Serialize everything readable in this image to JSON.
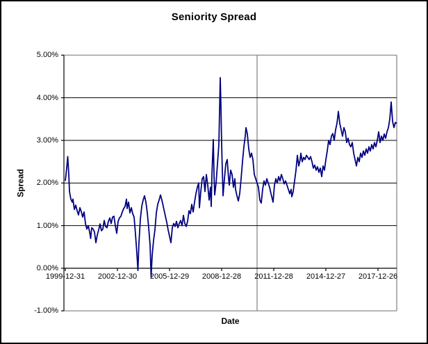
{
  "title": "Seniority Spread",
  "y_axis": {
    "title": "Spread",
    "tick_labels": [
      "5.00%",
      "4.00%",
      "3.00%",
      "2.00%",
      "1.00%",
      "0.00%",
      "-1.00%"
    ],
    "tick_values": [
      5,
      4,
      3,
      2,
      1,
      0,
      -1
    ]
  },
  "x_axis": {
    "title": "Date",
    "tick_labels": [
      "1999-12-31",
      "2002-12-30",
      "2005-12-29",
      "2008-12-28",
      "2011-12-28",
      "2014-12-27",
      "2017-12-26"
    ]
  },
  "colors": {
    "series": "#000080",
    "gridline": "#000000",
    "plot_border": "#808080",
    "vline": "#808080",
    "text": "#000000",
    "background": "#ffffff"
  },
  "chart_data": {
    "type": "line",
    "title": "Seniority Spread",
    "xlabel": "Date",
    "ylabel": "Spread",
    "ylim": [
      -1.0,
      5.0
    ],
    "y_tick_step": 1.0,
    "y_format": "percent",
    "x_tick_labels": [
      "1999-12-31",
      "2002-12-30",
      "2005-12-29",
      "2008-12-28",
      "2011-12-28",
      "2014-12-27",
      "2017-12-26"
    ],
    "x_tick_interval_years": 3,
    "x_range_years": [
      2000.0,
      2019.08
    ],
    "grid": "horizontal-major",
    "legend": "none",
    "annotations": [
      {
        "type": "vline",
        "t": 2011.04,
        "color": "#808080"
      }
    ],
    "series": [
      {
        "name": "Seniority Spread",
        "color": "#000080",
        "units": "percent",
        "points": [
          [
            2000.0,
            2.05
          ],
          [
            2000.08,
            2.35
          ],
          [
            2000.14,
            2.62
          ],
          [
            2000.2,
            2.2
          ],
          [
            2000.24,
            1.8
          ],
          [
            2000.32,
            1.62
          ],
          [
            2000.4,
            1.55
          ],
          [
            2000.44,
            1.62
          ],
          [
            2000.52,
            1.38
          ],
          [
            2000.6,
            1.48
          ],
          [
            2000.68,
            1.35
          ],
          [
            2000.76,
            1.25
          ],
          [
            2000.84,
            1.42
          ],
          [
            2000.92,
            1.33
          ],
          [
            2001.0,
            1.2
          ],
          [
            2001.08,
            1.32
          ],
          [
            2001.16,
            1.05
          ],
          [
            2001.24,
            0.92
          ],
          [
            2001.32,
            1.0
          ],
          [
            2001.4,
            0.85
          ],
          [
            2001.46,
            0.7
          ],
          [
            2001.52,
            0.95
          ],
          [
            2001.6,
            0.92
          ],
          [
            2001.68,
            0.85
          ],
          [
            2001.76,
            0.6
          ],
          [
            2001.84,
            0.78
          ],
          [
            2001.92,
            0.9
          ],
          [
            2002.0,
            1.04
          ],
          [
            2002.08,
            0.88
          ],
          [
            2002.16,
            0.92
          ],
          [
            2002.24,
            1.12
          ],
          [
            2002.32,
            0.98
          ],
          [
            2002.4,
            0.95
          ],
          [
            2002.48,
            1.1
          ],
          [
            2002.56,
            1.18
          ],
          [
            2002.64,
            1.05
          ],
          [
            2002.72,
            1.2
          ],
          [
            2002.8,
            1.22
          ],
          [
            2002.88,
            1.0
          ],
          [
            2002.96,
            0.82
          ],
          [
            2003.04,
            1.1
          ],
          [
            2003.12,
            1.18
          ],
          [
            2003.2,
            1.22
          ],
          [
            2003.28,
            1.32
          ],
          [
            2003.36,
            1.4
          ],
          [
            2003.44,
            1.45
          ],
          [
            2003.52,
            1.62
          ],
          [
            2003.56,
            1.4
          ],
          [
            2003.64,
            1.55
          ],
          [
            2003.72,
            1.3
          ],
          [
            2003.8,
            1.42
          ],
          [
            2003.88,
            1.28
          ],
          [
            2003.96,
            1.2
          ],
          [
            2004.04,
            0.8
          ],
          [
            2004.12,
            0.35
          ],
          [
            2004.18,
            -0.05
          ],
          [
            2004.24,
            0.6
          ],
          [
            2004.32,
            1.15
          ],
          [
            2004.4,
            1.45
          ],
          [
            2004.48,
            1.6
          ],
          [
            2004.56,
            1.7
          ],
          [
            2004.64,
            1.55
          ],
          [
            2004.72,
            1.3
          ],
          [
            2004.8,
            0.95
          ],
          [
            2004.88,
            0.55
          ],
          [
            2004.94,
            -0.2
          ],
          [
            2005.0,
            0.3
          ],
          [
            2005.08,
            0.65
          ],
          [
            2005.16,
            0.9
          ],
          [
            2005.24,
            1.3
          ],
          [
            2005.32,
            1.5
          ],
          [
            2005.4,
            1.6
          ],
          [
            2005.48,
            1.72
          ],
          [
            2005.56,
            1.6
          ],
          [
            2005.64,
            1.45
          ],
          [
            2005.72,
            1.3
          ],
          [
            2005.8,
            1.15
          ],
          [
            2005.84,
            1.08
          ],
          [
            2005.92,
            0.9
          ],
          [
            2006.0,
            0.75
          ],
          [
            2006.08,
            0.6
          ],
          [
            2006.16,
            0.95
          ],
          [
            2006.24,
            1.05
          ],
          [
            2006.32,
            0.98
          ],
          [
            2006.4,
            1.1
          ],
          [
            2006.48,
            0.95
          ],
          [
            2006.56,
            1.05
          ],
          [
            2006.64,
            1.12
          ],
          [
            2006.72,
            1.0
          ],
          [
            2006.8,
            1.24
          ],
          [
            2006.88,
            1.05
          ],
          [
            2006.96,
            0.98
          ],
          [
            2007.04,
            1.1
          ],
          [
            2007.12,
            1.35
          ],
          [
            2007.2,
            1.28
          ],
          [
            2007.28,
            1.5
          ],
          [
            2007.36,
            1.32
          ],
          [
            2007.44,
            1.55
          ],
          [
            2007.52,
            1.75
          ],
          [
            2007.6,
            1.9
          ],
          [
            2007.68,
            2.0
          ],
          [
            2007.72,
            1.42
          ],
          [
            2007.8,
            1.8
          ],
          [
            2007.88,
            2.1
          ],
          [
            2007.96,
            2.15
          ],
          [
            2008.04,
            1.8
          ],
          [
            2008.12,
            2.2
          ],
          [
            2008.2,
            1.95
          ],
          [
            2008.28,
            1.6
          ],
          [
            2008.36,
            1.9
          ],
          [
            2008.4,
            1.45
          ],
          [
            2008.44,
            2.2
          ],
          [
            2008.52,
            3.02
          ],
          [
            2008.56,
            2.2
          ],
          [
            2008.6,
            1.72
          ],
          [
            2008.68,
            2.0
          ],
          [
            2008.76,
            2.45
          ],
          [
            2008.84,
            2.9
          ],
          [
            2008.92,
            4.47
          ],
          [
            2008.96,
            3.8
          ],
          [
            2009.0,
            2.9
          ],
          [
            2009.08,
            1.7
          ],
          [
            2009.16,
            2.1
          ],
          [
            2009.24,
            2.45
          ],
          [
            2009.32,
            2.55
          ],
          [
            2009.4,
            2.1
          ],
          [
            2009.44,
            1.95
          ],
          [
            2009.52,
            2.3
          ],
          [
            2009.6,
            2.2
          ],
          [
            2009.68,
            1.9
          ],
          [
            2009.76,
            2.1
          ],
          [
            2009.8,
            1.85
          ],
          [
            2009.88,
            1.7
          ],
          [
            2009.96,
            1.58
          ],
          [
            2010.04,
            1.75
          ],
          [
            2010.12,
            2.1
          ],
          [
            2010.2,
            2.5
          ],
          [
            2010.28,
            2.85
          ],
          [
            2010.36,
            3.1
          ],
          [
            2010.4,
            3.3
          ],
          [
            2010.48,
            3.15
          ],
          [
            2010.56,
            2.8
          ],
          [
            2010.64,
            2.6
          ],
          [
            2010.72,
            2.7
          ],
          [
            2010.8,
            2.55
          ],
          [
            2010.88,
            2.2
          ],
          [
            2010.96,
            2.1
          ],
          [
            2011.04,
            2.0
          ],
          [
            2011.12,
            1.9
          ],
          [
            2011.2,
            1.6
          ],
          [
            2011.28,
            1.53
          ],
          [
            2011.36,
            1.85
          ],
          [
            2011.44,
            2.05
          ],
          [
            2011.52,
            1.95
          ],
          [
            2011.6,
            2.1
          ],
          [
            2011.68,
            2.0
          ],
          [
            2011.76,
            1.9
          ],
          [
            2011.84,
            1.75
          ],
          [
            2011.92,
            1.62
          ],
          [
            2011.96,
            1.55
          ],
          [
            2012.04,
            1.95
          ],
          [
            2012.12,
            2.1
          ],
          [
            2012.2,
            2.0
          ],
          [
            2012.28,
            2.15
          ],
          [
            2012.36,
            2.05
          ],
          [
            2012.44,
            2.2
          ],
          [
            2012.52,
            2.1
          ],
          [
            2012.6,
            1.98
          ],
          [
            2012.68,
            2.05
          ],
          [
            2012.76,
            1.95
          ],
          [
            2012.84,
            1.85
          ],
          [
            2012.92,
            1.75
          ],
          [
            2013.0,
            1.85
          ],
          [
            2013.04,
            1.68
          ],
          [
            2013.12,
            1.8
          ],
          [
            2013.2,
            2.05
          ],
          [
            2013.28,
            2.3
          ],
          [
            2013.36,
            2.65
          ],
          [
            2013.44,
            2.4
          ],
          [
            2013.52,
            2.55
          ],
          [
            2013.56,
            2.7
          ],
          [
            2013.64,
            2.5
          ],
          [
            2013.72,
            2.6
          ],
          [
            2013.8,
            2.55
          ],
          [
            2013.88,
            2.65
          ],
          [
            2013.96,
            2.6
          ],
          [
            2014.04,
            2.55
          ],
          [
            2014.12,
            2.62
          ],
          [
            2014.2,
            2.5
          ],
          [
            2014.28,
            2.35
          ],
          [
            2014.36,
            2.42
          ],
          [
            2014.44,
            2.3
          ],
          [
            2014.52,
            2.38
          ],
          [
            2014.6,
            2.25
          ],
          [
            2014.68,
            2.35
          ],
          [
            2014.76,
            2.15
          ],
          [
            2014.84,
            2.4
          ],
          [
            2014.92,
            2.3
          ],
          [
            2015.0,
            2.55
          ],
          [
            2015.08,
            2.75
          ],
          [
            2015.16,
            3.0
          ],
          [
            2015.24,
            2.9
          ],
          [
            2015.32,
            3.1
          ],
          [
            2015.4,
            3.16
          ],
          [
            2015.48,
            3.0
          ],
          [
            2015.56,
            3.25
          ],
          [
            2015.64,
            3.4
          ],
          [
            2015.72,
            3.68
          ],
          [
            2015.8,
            3.4
          ],
          [
            2015.88,
            3.25
          ],
          [
            2015.96,
            3.1
          ],
          [
            2016.04,
            3.3
          ],
          [
            2016.12,
            3.2
          ],
          [
            2016.2,
            2.95
          ],
          [
            2016.28,
            3.05
          ],
          [
            2016.36,
            2.9
          ],
          [
            2016.44,
            2.85
          ],
          [
            2016.52,
            2.95
          ],
          [
            2016.6,
            2.7
          ],
          [
            2016.68,
            2.55
          ],
          [
            2016.76,
            2.4
          ],
          [
            2016.84,
            2.6
          ],
          [
            2016.92,
            2.5
          ],
          [
            2017.0,
            2.7
          ],
          [
            2017.08,
            2.6
          ],
          [
            2017.16,
            2.75
          ],
          [
            2017.24,
            2.65
          ],
          [
            2017.32,
            2.8
          ],
          [
            2017.4,
            2.7
          ],
          [
            2017.48,
            2.85
          ],
          [
            2017.56,
            2.75
          ],
          [
            2017.64,
            2.9
          ],
          [
            2017.72,
            2.8
          ],
          [
            2017.8,
            2.95
          ],
          [
            2017.88,
            2.85
          ],
          [
            2017.96,
            3.0
          ],
          [
            2018.04,
            3.2
          ],
          [
            2018.12,
            2.95
          ],
          [
            2018.2,
            3.1
          ],
          [
            2018.28,
            3.0
          ],
          [
            2018.36,
            3.15
          ],
          [
            2018.44,
            3.05
          ],
          [
            2018.52,
            3.2
          ],
          [
            2018.6,
            3.3
          ],
          [
            2018.68,
            3.5
          ],
          [
            2018.76,
            3.9
          ],
          [
            2018.84,
            3.45
          ],
          [
            2018.92,
            3.3
          ],
          [
            2019.0,
            3.42
          ],
          [
            2019.08,
            3.4
          ]
        ]
      }
    ]
  }
}
